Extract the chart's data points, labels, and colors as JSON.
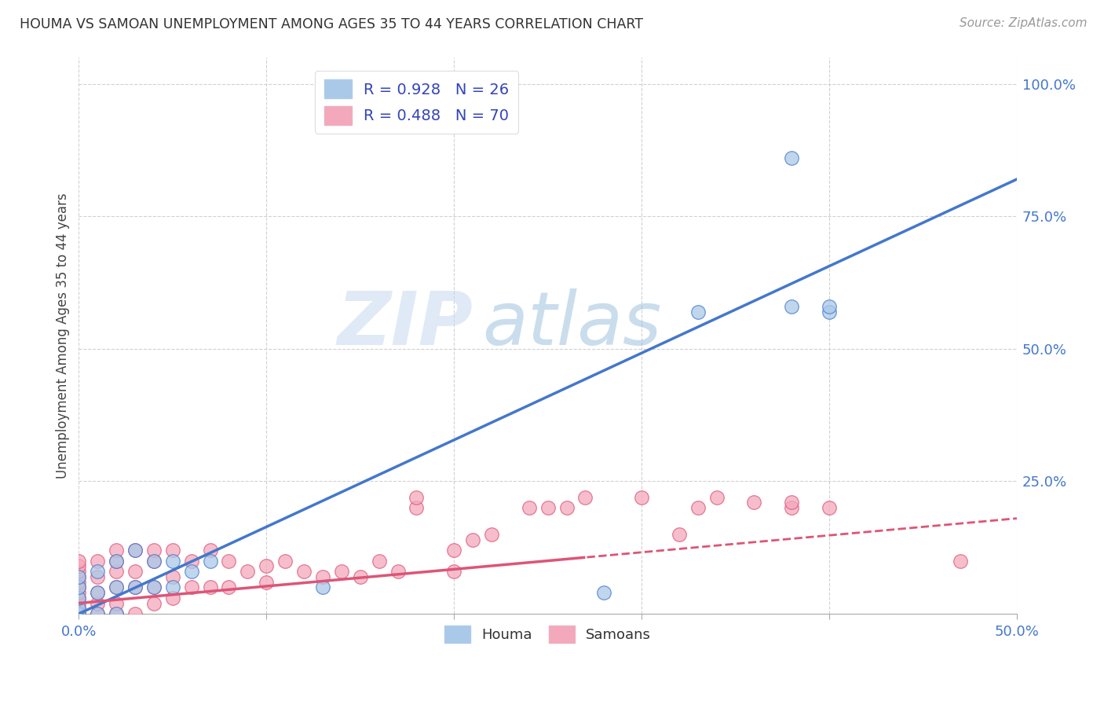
{
  "title": "HOUMA VS SAMOAN UNEMPLOYMENT AMONG AGES 35 TO 44 YEARS CORRELATION CHART",
  "source": "Source: ZipAtlas.com",
  "ylabel": "Unemployment Among Ages 35 to 44 years",
  "xlim": [
    0.0,
    0.5
  ],
  "ylim": [
    0.0,
    1.05
  ],
  "xticks": [
    0.0,
    0.1,
    0.2,
    0.3,
    0.4,
    0.5
  ],
  "yticks": [
    0.0,
    0.25,
    0.5,
    0.75,
    1.0
  ],
  "xticklabels": [
    "0.0%",
    "",
    "",
    "",
    "",
    "50.0%"
  ],
  "yticklabels": [
    "",
    "25.0%",
    "50.0%",
    "75.0%",
    "100.0%"
  ],
  "houma_color": "#aac9e8",
  "samoan_color": "#f4a8bc",
  "houma_line_color": "#4477cc",
  "samoan_line_color": "#dd5577",
  "houma_R": 0.928,
  "houma_N": 26,
  "samoan_R": 0.488,
  "samoan_N": 70,
  "watermark_zip": "ZIP",
  "watermark_atlas": "atlas",
  "houma_line_slope": 1.64,
  "houma_line_intercept": 0.0,
  "samoan_line_slope": 0.32,
  "samoan_line_intercept": 0.02,
  "houma_x": [
    0.0,
    0.0,
    0.0,
    0.0,
    0.0,
    0.01,
    0.01,
    0.01,
    0.02,
    0.02,
    0.02,
    0.03,
    0.03,
    0.04,
    0.04,
    0.05,
    0.05,
    0.06,
    0.07,
    0.13,
    0.28,
    0.33,
    0.38,
    0.38,
    0.4,
    0.4
  ],
  "houma_y": [
    0.0,
    0.01,
    0.03,
    0.05,
    0.07,
    0.0,
    0.04,
    0.08,
    0.0,
    0.05,
    0.1,
    0.05,
    0.12,
    0.05,
    0.1,
    0.05,
    0.1,
    0.08,
    0.1,
    0.05,
    0.04,
    0.57,
    0.86,
    0.58,
    0.57,
    0.58
  ],
  "samoan_x": [
    0.0,
    0.0,
    0.0,
    0.0,
    0.0,
    0.0,
    0.0,
    0.0,
    0.0,
    0.0,
    0.0,
    0.0,
    0.0,
    0.01,
    0.01,
    0.01,
    0.01,
    0.01,
    0.02,
    0.02,
    0.02,
    0.02,
    0.02,
    0.02,
    0.03,
    0.03,
    0.03,
    0.03,
    0.04,
    0.04,
    0.04,
    0.04,
    0.05,
    0.05,
    0.05,
    0.06,
    0.06,
    0.07,
    0.07,
    0.08,
    0.08,
    0.09,
    0.1,
    0.1,
    0.11,
    0.12,
    0.13,
    0.14,
    0.15,
    0.16,
    0.17,
    0.18,
    0.18,
    0.2,
    0.2,
    0.21,
    0.22,
    0.24,
    0.25,
    0.26,
    0.27,
    0.3,
    0.32,
    0.33,
    0.34,
    0.36,
    0.38,
    0.38,
    0.4,
    0.47
  ],
  "samoan_y": [
    0.0,
    0.0,
    0.0,
    0.01,
    0.02,
    0.03,
    0.04,
    0.05,
    0.06,
    0.07,
    0.08,
    0.09,
    0.1,
    0.0,
    0.02,
    0.04,
    0.07,
    0.1,
    0.0,
    0.02,
    0.05,
    0.08,
    0.1,
    0.12,
    0.0,
    0.05,
    0.08,
    0.12,
    0.02,
    0.05,
    0.1,
    0.12,
    0.03,
    0.07,
    0.12,
    0.05,
    0.1,
    0.05,
    0.12,
    0.05,
    0.1,
    0.08,
    0.06,
    0.09,
    0.1,
    0.08,
    0.07,
    0.08,
    0.07,
    0.1,
    0.08,
    0.2,
    0.22,
    0.12,
    0.08,
    0.14,
    0.15,
    0.2,
    0.2,
    0.2,
    0.22,
    0.22,
    0.15,
    0.2,
    0.22,
    0.21,
    0.2,
    0.21,
    0.2,
    0.1
  ]
}
